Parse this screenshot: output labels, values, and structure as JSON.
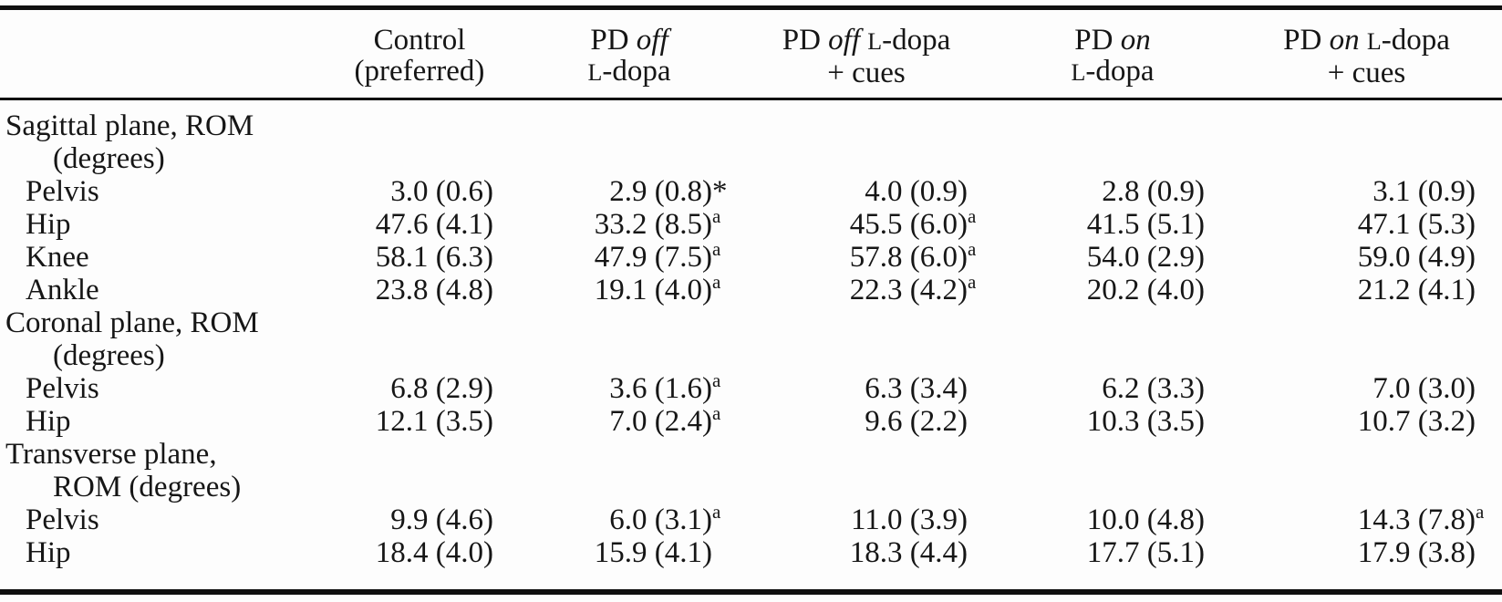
{
  "table": {
    "columns": [
      {
        "id": "control",
        "line1": [
          {
            "t": "Control"
          }
        ],
        "line2": [
          {
            "t": "(preferred)"
          }
        ]
      },
      {
        "id": "pd-off-ldopa",
        "line1": [
          {
            "t": "PD "
          },
          {
            "t": "off",
            "style": "italic"
          }
        ],
        "line2": [
          {
            "t": "L",
            "style": "smallcap"
          },
          {
            "t": "-dopa"
          }
        ]
      },
      {
        "id": "pd-off-ldopa-cues",
        "line1": [
          {
            "t": "PD "
          },
          {
            "t": "off",
            "style": "italic"
          },
          {
            "t": " "
          },
          {
            "t": "L",
            "style": "smallcap"
          },
          {
            "t": "-dopa"
          }
        ],
        "line2": [
          {
            "t": "+ cues"
          }
        ]
      },
      {
        "id": "pd-on-ldopa",
        "line1": [
          {
            "t": "PD "
          },
          {
            "t": "on",
            "style": "italic"
          }
        ],
        "line2": [
          {
            "t": "L",
            "style": "smallcap"
          },
          {
            "t": "-dopa"
          }
        ]
      },
      {
        "id": "pd-on-ldopa-cues",
        "line1": [
          {
            "t": "PD "
          },
          {
            "t": "on",
            "style": "italic"
          },
          {
            "t": " "
          },
          {
            "t": "L",
            "style": "smallcap"
          },
          {
            "t": "-dopa"
          }
        ],
        "line2": [
          {
            "t": "+ cues"
          }
        ]
      }
    ],
    "rows": [
      {
        "type": "section",
        "line1": "Sagittal plane, ROM",
        "line2": "(degrees)"
      },
      {
        "type": "data",
        "label": "Pelvis",
        "cells": [
          {
            "v": "3.0 (0.6)"
          },
          {
            "v": "2.9 (0.8)",
            "mark": "*"
          },
          {
            "v": "4.0 (0.9)"
          },
          {
            "v": "2.8 (0.9)"
          },
          {
            "v": "3.1 (0.9)"
          }
        ]
      },
      {
        "type": "data",
        "label": "Hip",
        "cells": [
          {
            "v": "47.6 (4.1)"
          },
          {
            "v": "33.2 (8.5)",
            "mark": "a"
          },
          {
            "v": "45.5 (6.0)",
            "mark": "a"
          },
          {
            "v": "41.5 (5.1)"
          },
          {
            "v": "47.1 (5.3)"
          }
        ]
      },
      {
        "type": "data",
        "label": "Knee",
        "cells": [
          {
            "v": "58.1 (6.3)"
          },
          {
            "v": "47.9 (7.5)",
            "mark": "a"
          },
          {
            "v": "57.8 (6.0)",
            "mark": "a"
          },
          {
            "v": "54.0 (2.9)"
          },
          {
            "v": "59.0 (4.9)"
          }
        ]
      },
      {
        "type": "data",
        "label": "Ankle",
        "cells": [
          {
            "v": "23.8 (4.8)"
          },
          {
            "v": "19.1 (4.0)",
            "mark": "a"
          },
          {
            "v": "22.3 (4.2)",
            "mark": "a"
          },
          {
            "v": "20.2 (4.0)"
          },
          {
            "v": "21.2 (4.1)"
          }
        ]
      },
      {
        "type": "section",
        "line1": "Coronal plane, ROM",
        "line2": "(degrees)"
      },
      {
        "type": "data",
        "label": "Pelvis",
        "cells": [
          {
            "v": "6.8 (2.9)"
          },
          {
            "v": "3.6 (1.6)",
            "mark": "a"
          },
          {
            "v": "6.3 (3.4)"
          },
          {
            "v": "6.2 (3.3)"
          },
          {
            "v": "7.0 (3.0)"
          }
        ]
      },
      {
        "type": "data",
        "label": "Hip",
        "cells": [
          {
            "v": "12.1 (3.5)"
          },
          {
            "v": "7.0 (2.4)",
            "mark": "a"
          },
          {
            "v": "9.6 (2.2)"
          },
          {
            "v": "10.3 (3.5)"
          },
          {
            "v": "10.7 (3.2)"
          }
        ]
      },
      {
        "type": "section",
        "line1": "Transverse plane,",
        "line2": "ROM (degrees)"
      },
      {
        "type": "data",
        "label": "Pelvis",
        "cells": [
          {
            "v": "9.9 (4.6)"
          },
          {
            "v": "6.0 (3.1)",
            "mark": "a"
          },
          {
            "v": "11.0 (3.9)"
          },
          {
            "v": "10.0 (4.8)"
          },
          {
            "v": "14.3 (7.8)",
            "mark": "a"
          }
        ]
      },
      {
        "type": "data",
        "label": "Hip",
        "cells": [
          {
            "v": "18.4 (4.0)"
          },
          {
            "v": "15.9 (4.1)"
          },
          {
            "v": "18.3 (4.4)"
          },
          {
            "v": "17.7 (5.1)"
          },
          {
            "v": "17.9 (3.8)"
          }
        ]
      }
    ]
  }
}
